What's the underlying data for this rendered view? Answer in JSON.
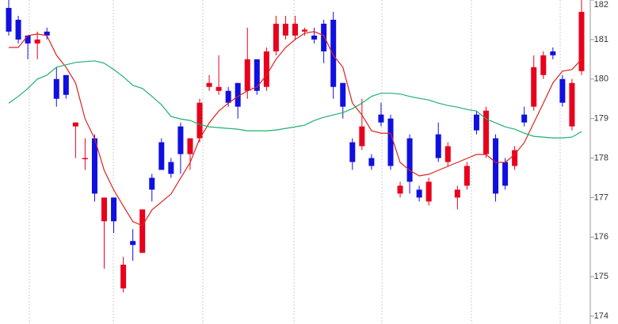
{
  "chart_data": {
    "type": "candlestick",
    "open": [
      181.8,
      181.5,
      181.1,
      180.9,
      181.2,
      180.0,
      180.1,
      178.8,
      178.0,
      178.5,
      176.4,
      177.0,
      174.7,
      175.9,
      175.6,
      177.5,
      178.4,
      177.9,
      178.8,
      178.1,
      178.5,
      179.8,
      179.7,
      179.7,
      179.9,
      179.7,
      180.5,
      179.8,
      180.7,
      181.1,
      181.1,
      181.2,
      181.1,
      181.4,
      181.5,
      179.9,
      178.4,
      178.3,
      178.0,
      179.1,
      179.0,
      177.1,
      178.5,
      177.2,
      176.9,
      178.6,
      177.9,
      177.0,
      177.3,
      179.1,
      178.1,
      178.5,
      177.9,
      177.8,
      179.1,
      179.3,
      180.1,
      180.7,
      180.0,
      178.8,
      180.2
    ],
    "high": [
      182.0,
      181.6,
      181.1,
      181.2,
      181.3,
      180.3,
      180.1,
      178.9,
      178.5,
      178.6,
      177.0,
      177.0,
      175.5,
      176.2,
      176.7,
      177.6,
      178.5,
      178.0,
      178.9,
      178.5,
      179.5,
      180.1,
      180.6,
      179.8,
      179.9,
      181.3,
      180.5,
      180.8,
      181.6,
      181.6,
      181.6,
      181.3,
      181.3,
      181.5,
      181.7,
      179.9,
      178.5,
      179.5,
      178.1,
      179.4,
      179.1,
      177.4,
      178.6,
      177.3,
      177.5,
      178.9,
      178.4,
      177.3,
      177.9,
      179.2,
      179.3,
      178.6,
      178.0,
      178.3,
      179.3,
      180.6,
      180.7,
      180.8,
      180.1,
      180.0,
      182.0
    ],
    "low": [
      181.1,
      180.9,
      180.5,
      180.5,
      181.0,
      179.3,
      179.5,
      178.0,
      177.7,
      176.9,
      175.2,
      176.1,
      174.6,
      175.4,
      175.6,
      176.9,
      177.7,
      177.5,
      177.6,
      177.7,
      178.4,
      179.7,
      179.6,
      179.3,
      179.0,
      179.5,
      179.6,
      179.7,
      180.6,
      181.0,
      181.0,
      181.1,
      180.9,
      180.4,
      179.5,
      179.0,
      177.7,
      178.2,
      177.7,
      178.8,
      177.7,
      177.0,
      177.1,
      176.9,
      176.8,
      177.9,
      177.8,
      176.7,
      177.2,
      178.6,
      178.0,
      176.9,
      177.2,
      177.7,
      178.8,
      179.2,
      180.0,
      180.5,
      179.3,
      178.7,
      180.1
    ],
    "close": [
      181.2,
      181.0,
      180.9,
      181.0,
      181.1,
      179.5,
      179.6,
      178.9,
      178.0,
      177.1,
      177.0,
      176.4,
      175.3,
      175.8,
      176.7,
      177.2,
      177.7,
      177.6,
      178.1,
      178.5,
      179.4,
      179.9,
      179.8,
      179.4,
      179.3,
      180.5,
      179.7,
      180.7,
      181.4,
      181.4,
      181.4,
      181.25,
      181.0,
      180.7,
      179.8,
      179.3,
      177.9,
      178.8,
      177.8,
      178.9,
      177.8,
      177.3,
      177.4,
      177.0,
      177.4,
      178.0,
      178.3,
      177.2,
      177.8,
      178.7,
      179.2,
      177.1,
      177.3,
      178.2,
      178.9,
      180.3,
      180.6,
      180.6,
      179.4,
      179.9,
      181.7
    ],
    "up_color": "#e8001c",
    "down_color": "#1010e0",
    "series": [
      {
        "color": "#e02020",
        "values": [
          180.8,
          180.8,
          181.1,
          181.14,
          181.1,
          180.6,
          180.3,
          179.9,
          178.99,
          178.49,
          177.69,
          177.19,
          176.79,
          176.39,
          176.29,
          176.69,
          176.89,
          177.09,
          177.49,
          177.89,
          178.49,
          178.89,
          179.19,
          179.39,
          179.56,
          179.7,
          179.8,
          180.1,
          180.5,
          180.8,
          181.0,
          181.16,
          181.2,
          181.1,
          180.6,
          180.3,
          179.39,
          179.09,
          178.69,
          178.63,
          178.63,
          177.89,
          177.69,
          177.55,
          177.59,
          177.69,
          177.79,
          177.89,
          177.99,
          178.09,
          178.09,
          177.89,
          177.89,
          178.09,
          178.39,
          178.89,
          179.39,
          179.9,
          180.2,
          180.24,
          180.5
        ]
      },
      {
        "color": "#20b070",
        "values": [
          179.39,
          179.56,
          179.76,
          180.0,
          180.1,
          180.3,
          180.36,
          180.42,
          180.44,
          180.46,
          180.4,
          180.24,
          180.06,
          179.84,
          179.76,
          179.56,
          179.35,
          179.05,
          178.99,
          178.95,
          178.85,
          178.79,
          178.77,
          178.75,
          178.73,
          178.69,
          178.69,
          178.69,
          178.71,
          178.75,
          178.79,
          178.83,
          178.95,
          179.03,
          179.09,
          179.15,
          179.25,
          179.39,
          179.56,
          179.64,
          179.64,
          179.62,
          179.56,
          179.51,
          179.47,
          179.39,
          179.33,
          179.29,
          179.23,
          179.19,
          178.99,
          178.89,
          178.79,
          178.73,
          178.63,
          178.55,
          178.53,
          178.51,
          178.51,
          178.53,
          178.67
        ]
      }
    ],
    "ylim": [
      173.8,
      182
    ],
    "yticks": [
      174,
      175,
      176,
      177,
      178,
      179,
      180,
      181,
      182
    ]
  }
}
